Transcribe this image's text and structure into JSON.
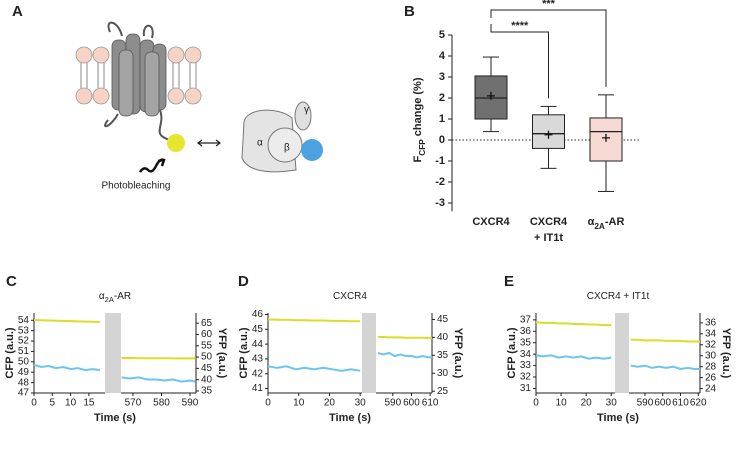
{
  "panel_labels": [
    "A",
    "B",
    "C",
    "D",
    "E"
  ],
  "diagram": {
    "alpha": "α",
    "beta": "β",
    "gamma": "γ",
    "label": "Photobleaching"
  },
  "chart_data": [
    {
      "type": "box",
      "ylabel": "FCFP change (%)",
      "ylabel_sub": "CFP",
      "categories": [
        "CXCR4",
        "CXCR4\n+ IT1t",
        "α2A-AR"
      ],
      "category_subs": [
        null,
        null,
        "2A"
      ],
      "boxes": [
        {
          "low": 0.4,
          "q1": 1.0,
          "median": 2.0,
          "q3": 3.05,
          "high": 3.95,
          "mean": 2.1,
          "color": "#707070"
        },
        {
          "low": -1.35,
          "q1": -0.4,
          "median": 0.3,
          "q3": 1.2,
          "high": 1.6,
          "mean": 0.25,
          "color": "#d9d9d9"
        },
        {
          "low": -2.45,
          "q1": -1.0,
          "median": 0.4,
          "q3": 1.05,
          "high": 2.15,
          "mean": 0.1,
          "color": "#f7d9d4"
        }
      ],
      "ylim": [
        -3.4,
        5
      ],
      "yticks": [
        -3,
        -2,
        -1,
        0,
        1,
        2,
        3,
        4,
        5
      ],
      "reference_line": 0,
      "annotations": [
        {
          "text": "****",
          "pair": [
            0,
            1
          ]
        },
        {
          "text": "***",
          "pair": [
            0,
            2
          ]
        }
      ]
    },
    {
      "type": "trace",
      "title": "α2A-AR",
      "title_sub": "2A",
      "xlabel": "Time (s)",
      "ylabel": "CFP (a.u.)",
      "y2label": "YFP (a.u.)",
      "xlim": [
        [
          0,
          19.4
        ],
        [
          565.8,
          592.1
        ]
      ],
      "xticks": [
        0,
        5,
        10,
        15,
        570,
        580,
        590
      ],
      "ylim": [
        47,
        54.7
      ],
      "yticks": [
        47,
        48,
        49,
        50,
        51,
        52,
        53,
        54
      ],
      "y2lim": [
        34.1,
        69.5
      ],
      "y2ticks": [
        35,
        40,
        45,
        50,
        55,
        60,
        65
      ],
      "x": [
        0,
        2,
        4,
        6,
        8,
        10,
        12,
        14,
        16,
        18,
        566,
        569,
        572,
        575,
        578,
        581,
        584,
        587,
        590,
        592
      ],
      "series": [
        {
          "color": "#6cc5ef",
          "values": [
            49.7,
            49.5,
            49.6,
            49.4,
            49.5,
            49.3,
            49.4,
            49.2,
            49.3,
            49.2,
            48.5,
            48.4,
            48.5,
            48.3,
            48.3,
            48.2,
            48.3,
            48.1,
            48.2,
            48.1
          ]
        },
        {
          "color": "#dcdc2a",
          "axis": "y2",
          "values": [
            66.4,
            66.3,
            66.2,
            66.1,
            66.0,
            65.9,
            65.8,
            65.7,
            65.6,
            65.5,
            49.6,
            49.6,
            49.5,
            49.5,
            49.5,
            49.5,
            49.4,
            49.4,
            49.4,
            49.4
          ]
        }
      ]
    },
    {
      "type": "trace",
      "title": "CXCR4",
      "xlabel": "Time (s)",
      "ylabel": "CFP (a.u.)",
      "y2label": "YFP (a.u.)",
      "xlim": [
        [
          0,
          30.6
        ],
        [
          581,
          611
        ]
      ],
      "xticks": [
        0,
        10,
        20,
        30,
        590,
        600,
        610
      ],
      "ylim": [
        40.7,
        46.1
      ],
      "yticks": [
        41,
        42,
        43,
        44,
        45,
        46
      ],
      "y2lim": [
        24.5,
        46.8
      ],
      "y2ticks": [
        25,
        30,
        35,
        40,
        45
      ],
      "x": [
        0,
        3,
        6,
        9,
        12,
        15,
        18,
        21,
        24,
        27,
        30,
        582,
        585,
        588,
        591,
        594,
        597,
        600,
        603,
        606,
        609,
        611
      ],
      "series": [
        {
          "color": "#6cc5ef",
          "values": [
            42.5,
            42.4,
            42.5,
            42.3,
            42.4,
            42.3,
            42.4,
            42.3,
            42.2,
            42.3,
            42.2,
            43.4,
            43.3,
            43.4,
            43.2,
            43.3,
            43.2,
            43.2,
            43.1,
            43.2,
            43.1,
            43.1
          ]
        },
        {
          "color": "#dcdc2a",
          "axis": "y2",
          "values": [
            45.0,
            44.9,
            44.9,
            44.8,
            44.8,
            44.7,
            44.7,
            44.6,
            44.6,
            44.5,
            44.5,
            40.1,
            40.1,
            40.0,
            40.0,
            40.0,
            39.9,
            39.9,
            39.9,
            39.9,
            39.8,
            39.8
          ]
        }
      ]
    },
    {
      "type": "trace",
      "title": "CXCR4 + IT1t",
      "xlabel": "Time (s)",
      "ylabel": "CFP (a.u.)",
      "y2label": "YFP (a.u.)",
      "xlim": [
        [
          0,
          31.5
        ],
        [
          581,
          621
        ]
      ],
      "xticks": [
        0,
        10,
        20,
        30,
        590,
        600,
        610,
        620
      ],
      "ylim": [
        30.6,
        37.6
      ],
      "yticks": [
        31,
        32,
        33,
        34,
        35,
        36,
        37
      ],
      "y2lim": [
        23.2,
        37.8
      ],
      "y2ticks": [
        24,
        26,
        28,
        30,
        32,
        34,
        36
      ],
      "x": [
        0,
        3,
        6,
        9,
        12,
        15,
        18,
        21,
        24,
        27,
        30,
        582,
        586,
        590,
        594,
        598,
        602,
        606,
        610,
        614,
        618,
        621
      ],
      "series": [
        {
          "color": "#6cc5ef",
          "values": [
            33.9,
            33.8,
            33.9,
            33.7,
            33.8,
            33.7,
            33.8,
            33.6,
            33.7,
            33.6,
            33.7,
            33.0,
            32.9,
            33.0,
            32.8,
            32.9,
            32.8,
            32.9,
            32.7,
            32.8,
            32.7,
            32.7
          ]
        },
        {
          "color": "#dcdc2a",
          "axis": "y2",
          "values": [
            36.1,
            36.0,
            36.0,
            35.9,
            35.9,
            35.8,
            35.8,
            35.7,
            35.7,
            35.6,
            35.6,
            32.9,
            32.9,
            32.8,
            32.8,
            32.8,
            32.7,
            32.7,
            32.7,
            32.6,
            32.6,
            32.6
          ]
        }
      ]
    }
  ]
}
